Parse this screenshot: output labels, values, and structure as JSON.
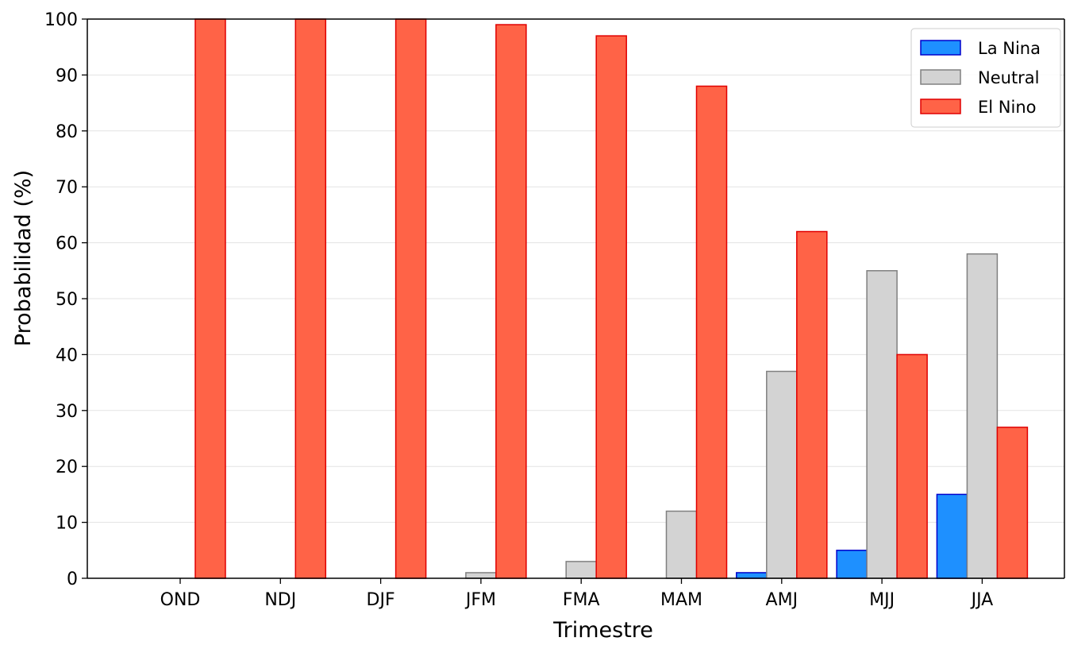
{
  "chart_data": {
    "type": "bar",
    "xlabel": "Trimestre",
    "ylabel": "Probabilidad (%)",
    "ylim": [
      0,
      100
    ],
    "yticks": [
      0,
      10,
      20,
      30,
      40,
      50,
      60,
      70,
      80,
      90,
      100
    ],
    "grid": "horizontal",
    "legend_position": "top-right",
    "categories": [
      "OND",
      "NDJ",
      "DJF",
      "JFM",
      "FMA",
      "MAM",
      "AMJ",
      "MJJ",
      "JJA"
    ],
    "series": [
      {
        "name": "La Nina",
        "color": "#1E90FF",
        "edge": "#0000CC",
        "values": [
          0,
          0,
          0,
          0,
          0,
          0,
          1,
          5,
          15
        ]
      },
      {
        "name": "Neutral",
        "color": "#D3D3D3",
        "edge": "#808080",
        "values": [
          0,
          0,
          0,
          1,
          3,
          12,
          37,
          55,
          58
        ]
      },
      {
        "name": "El Nino",
        "color": "#FF6347",
        "edge": "#E00000",
        "values": [
          100,
          100,
          100,
          99,
          97,
          88,
          62,
          40,
          27
        ]
      }
    ]
  }
}
